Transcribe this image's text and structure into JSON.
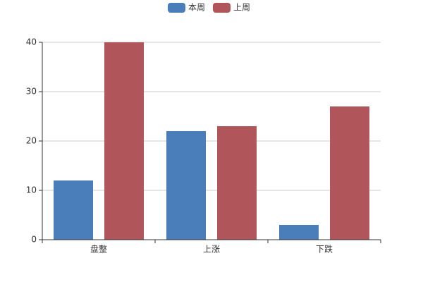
{
  "chart_data": {
    "type": "bar",
    "categories": [
      "盘整",
      "上涨",
      "下跌"
    ],
    "series": [
      {
        "name": "本周",
        "color": "#4a7ebb",
        "values": [
          12,
          22,
          3
        ]
      },
      {
        "name": "上周",
        "color": "#b0555a",
        "values": [
          40,
          23,
          27
        ]
      }
    ],
    "ylim": [
      0,
      40
    ],
    "yticks": [
      0,
      10,
      20,
      30,
      40
    ],
    "grid": true,
    "legend": "top"
  }
}
